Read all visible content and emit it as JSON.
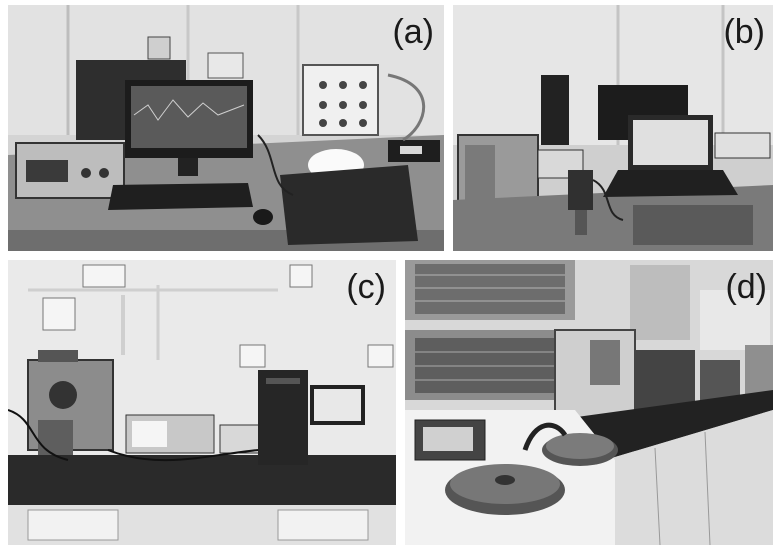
{
  "panels": [
    {
      "id": "a",
      "label": "(a)"
    },
    {
      "id": "b",
      "label": "(b)"
    },
    {
      "id": "c",
      "label": "(c)"
    },
    {
      "id": "d",
      "label": "(d)"
    }
  ],
  "colors": {
    "background": "#ffffff",
    "label_text": "#1a1a1a",
    "image_tone": "grayscale"
  }
}
